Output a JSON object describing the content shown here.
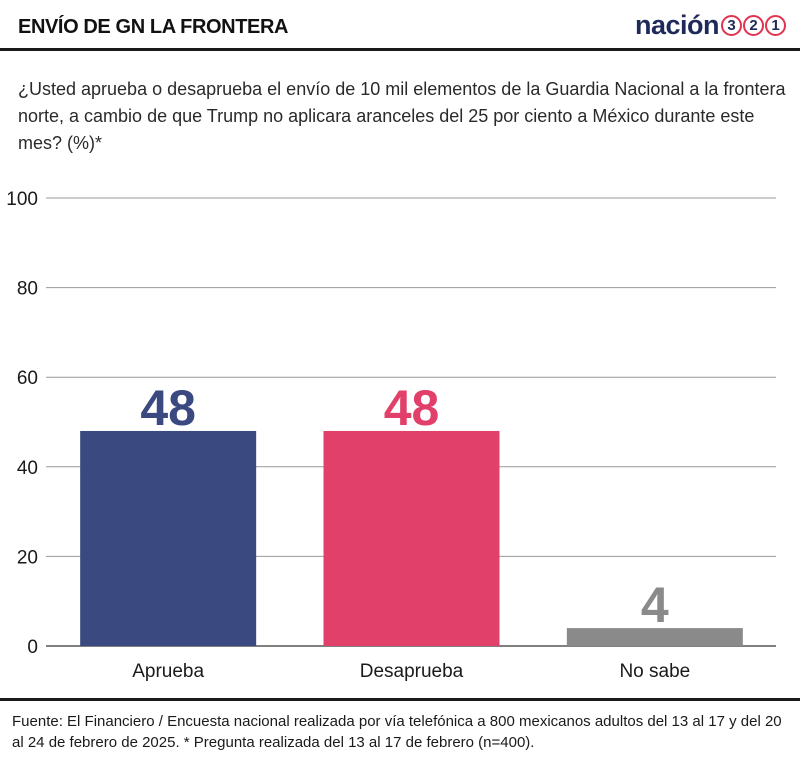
{
  "header": {
    "title": "ENVÍO DE GN LA FRONTERA",
    "logo_word": "nación",
    "logo_digits": [
      "3",
      "2",
      "1"
    ]
  },
  "question": "¿Usted aprueba o desaprueba el envío de 10 mil elementos de la Guardia Nacional a la frontera norte, a cambio de que Trump no aplicara aranceles del 25 por ciento a México durante este mes? (%)*",
  "source": "Fuente: El Financiero / Encuesta nacional realizada por vía telefónica a 800 mexicanos adultos del 13 al 17 y del 20 al 24 de febrero de 2025. * Pregunta realizada del 13 al 17 de febrero (n=400).",
  "colors": {
    "aprueba": "#3a4a80",
    "desaprueba": "#e1406a",
    "no_sabe": "#8a8a8a",
    "logo_ring": "#e2324f",
    "logo_text": "#1f2a5a"
  },
  "chart_data": {
    "type": "bar",
    "categories": [
      "Aprueba",
      "Desaprueba",
      "No sabe"
    ],
    "values": [
      48,
      48,
      4
    ],
    "value_labels": [
      "48",
      "48",
      "4"
    ],
    "bar_colors": [
      "#3a4a80",
      "#e1406a",
      "#8a8a8a"
    ],
    "ylim": [
      0,
      100
    ],
    "yticks": [
      0,
      20,
      40,
      60,
      80,
      100
    ],
    "grid": true,
    "title": "",
    "xlabel": "",
    "ylabel": ""
  }
}
